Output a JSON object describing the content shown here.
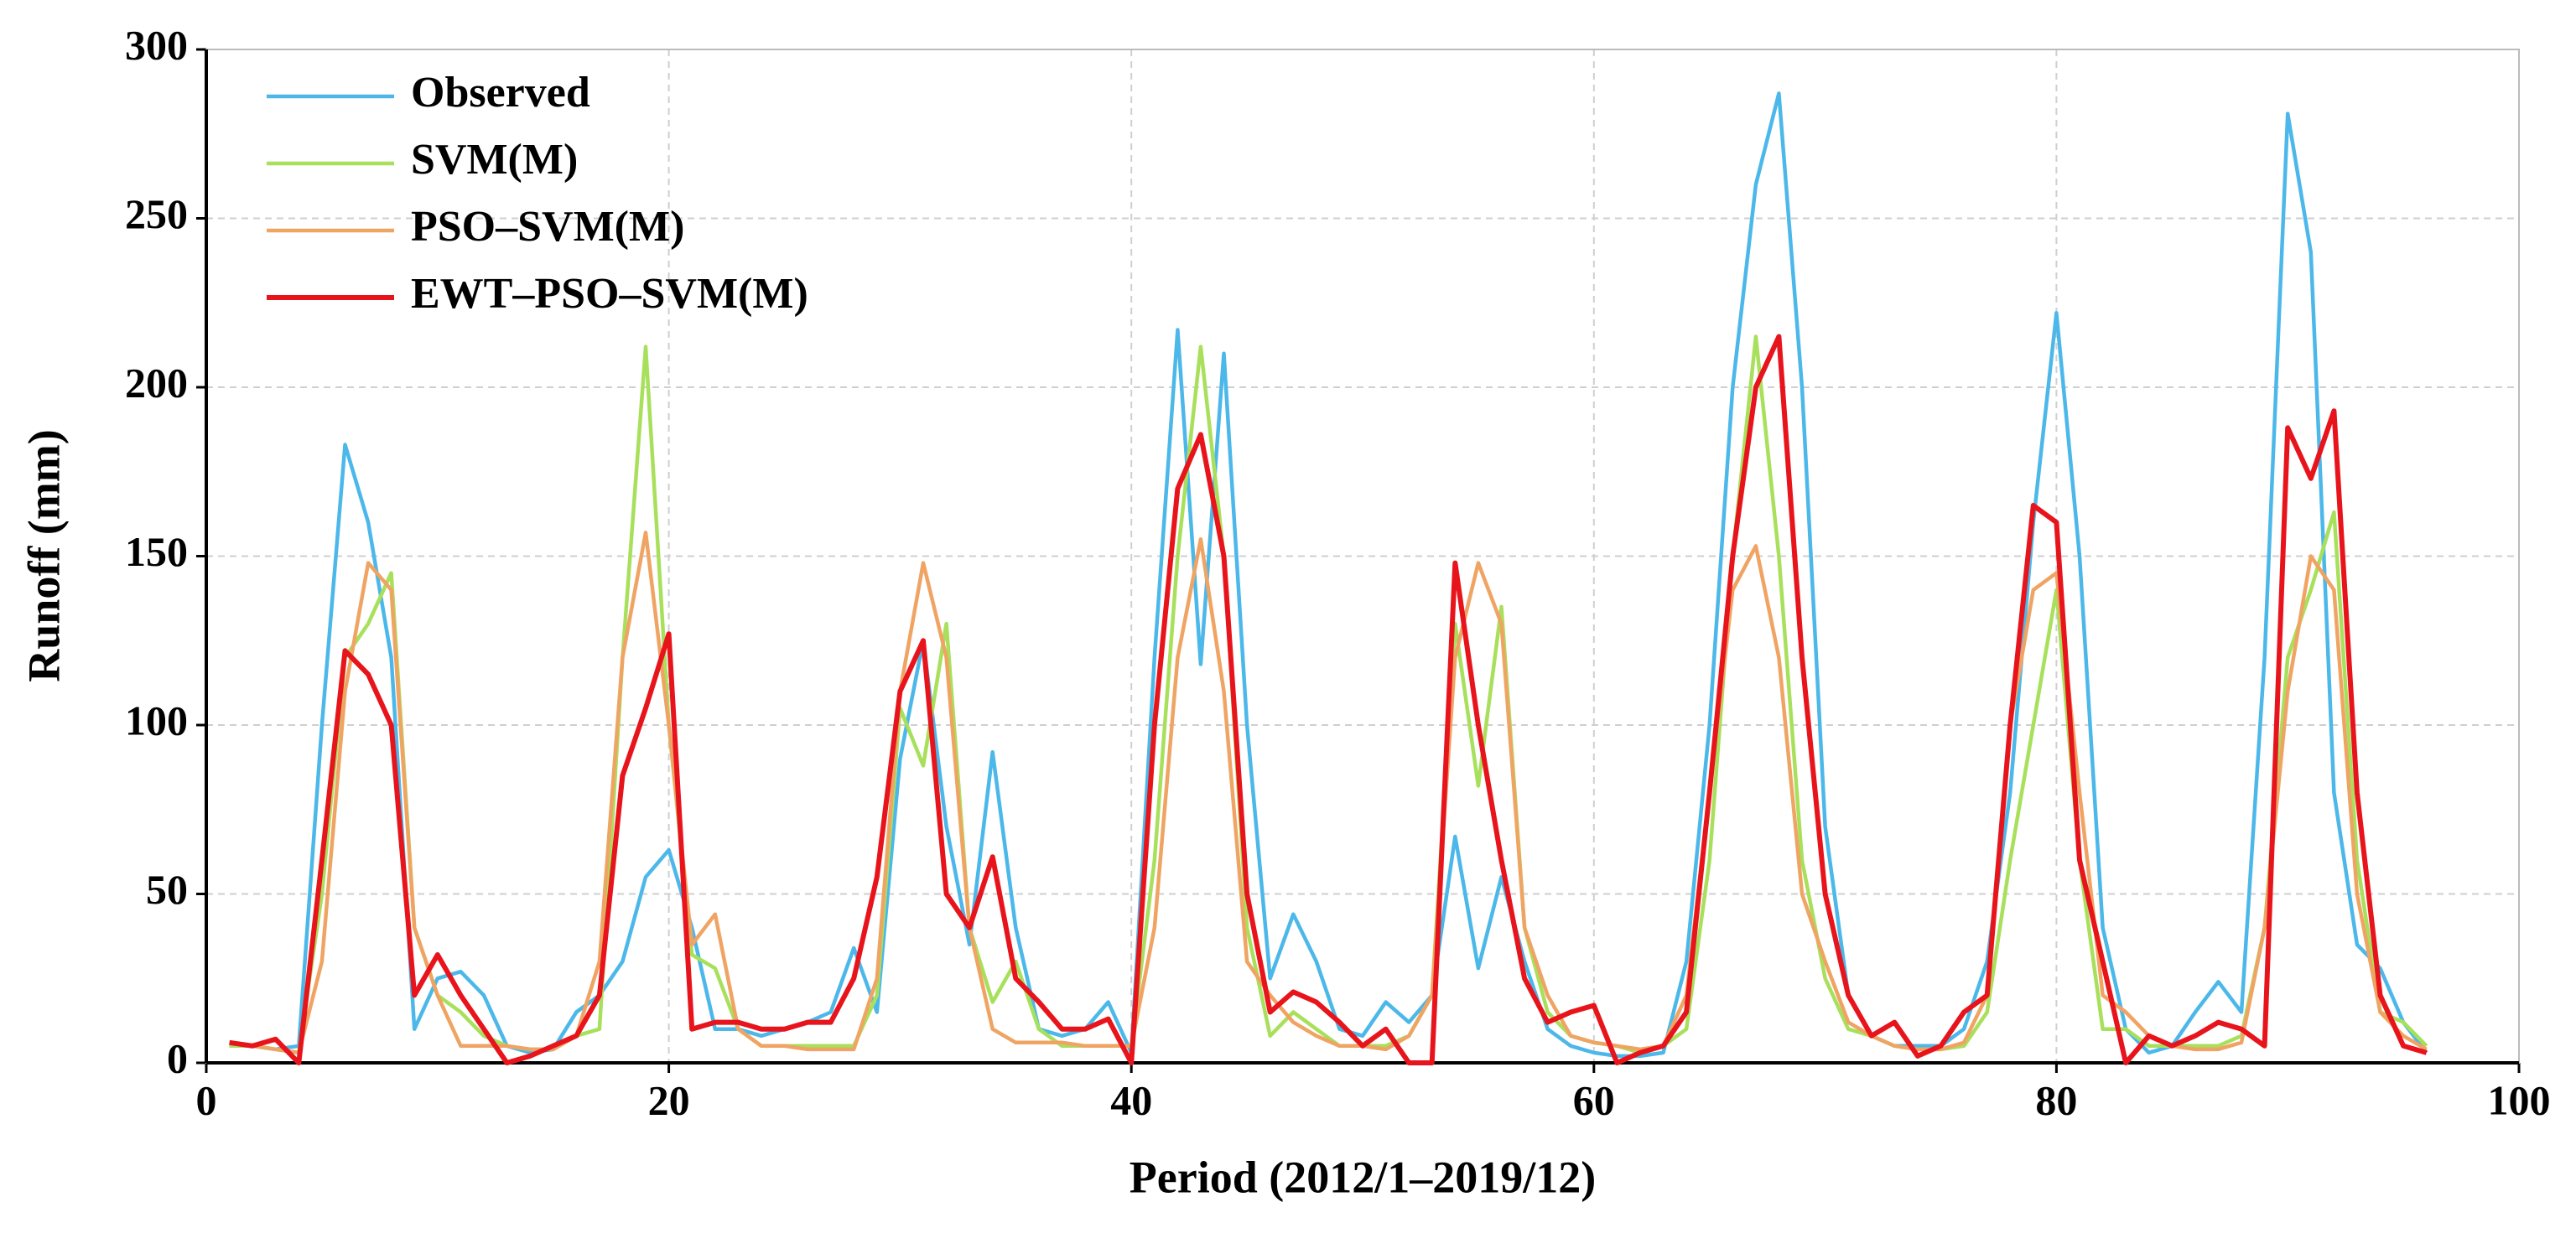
{
  "chart_data": {
    "type": "line",
    "x_label": "Period (2012/1–2019/12)",
    "y_label": "Runoff (mm)",
    "x": [
      1,
      2,
      3,
      4,
      5,
      6,
      7,
      8,
      9,
      10,
      11,
      12,
      13,
      14,
      15,
      16,
      17,
      18,
      19,
      20,
      21,
      22,
      23,
      24,
      25,
      26,
      27,
      28,
      29,
      30,
      31,
      32,
      33,
      34,
      35,
      36,
      37,
      38,
      39,
      40,
      41,
      42,
      43,
      44,
      45,
      46,
      47,
      48,
      49,
      50,
      51,
      52,
      53,
      54,
      55,
      56,
      57,
      58,
      59,
      60,
      61,
      62,
      63,
      64,
      65,
      66,
      67,
      68,
      69,
      70,
      71,
      72,
      73,
      74,
      75,
      76,
      77,
      78,
      79,
      80,
      81,
      82,
      83,
      84,
      85,
      86,
      87,
      88,
      89,
      90,
      91,
      92,
      93,
      94,
      95,
      96
    ],
    "series": [
      {
        "name": "Observed",
        "color": "#4cb8ea",
        "values": [
          5,
          5,
          4,
          5,
          100,
          183,
          160,
          120,
          10,
          25,
          27,
          20,
          5,
          3,
          4,
          15,
          20,
          30,
          55,
          63,
          40,
          10,
          10,
          8,
          10,
          12,
          15,
          34,
          15,
          90,
          125,
          70,
          35,
          92,
          40,
          10,
          8,
          10,
          18,
          3,
          120,
          217,
          118,
          210,
          100,
          25,
          44,
          30,
          10,
          8,
          18,
          12,
          20,
          67,
          28,
          55,
          30,
          10,
          5,
          3,
          2,
          2,
          3,
          30,
          100,
          200,
          260,
          287,
          200,
          70,
          20,
          8,
          5,
          5,
          5,
          10,
          30,
          80,
          160,
          222,
          150,
          40,
          10,
          3,
          5,
          15,
          24,
          15,
          120,
          281,
          240,
          80,
          35,
          28,
          12,
          3
        ]
      },
      {
        "name": "SVM(M)",
        "color": "#a8e05c",
        "values": [
          5,
          5,
          4,
          3,
          50,
          120,
          130,
          145,
          40,
          20,
          15,
          8,
          5,
          4,
          4,
          8,
          10,
          120,
          212,
          100,
          32,
          28,
          10,
          5,
          5,
          5,
          5,
          5,
          20,
          105,
          88,
          130,
          40,
          18,
          30,
          10,
          5,
          5,
          5,
          5,
          60,
          150,
          212,
          150,
          40,
          8,
          15,
          10,
          5,
          5,
          5,
          8,
          20,
          130,
          82,
          135,
          40,
          15,
          8,
          6,
          5,
          3,
          5,
          10,
          60,
          150,
          215,
          150,
          60,
          25,
          10,
          8,
          5,
          4,
          4,
          5,
          15,
          60,
          100,
          140,
          60,
          10,
          10,
          5,
          5,
          5,
          5,
          8,
          40,
          120,
          140,
          163,
          60,
          15,
          12,
          5
        ]
      },
      {
        "name": "PSO–SVM(M)",
        "color": "#f0a464",
        "values": [
          6,
          5,
          4,
          3,
          30,
          110,
          148,
          140,
          40,
          20,
          5,
          5,
          5,
          4,
          4,
          8,
          30,
          120,
          157,
          100,
          35,
          44,
          10,
          5,
          5,
          4,
          4,
          4,
          25,
          110,
          148,
          120,
          40,
          10,
          6,
          6,
          6,
          5,
          5,
          5,
          40,
          120,
          155,
          110,
          30,
          20,
          12,
          8,
          5,
          5,
          4,
          8,
          20,
          120,
          148,
          130,
          40,
          20,
          8,
          6,
          5,
          4,
          5,
          20,
          80,
          140,
          153,
          120,
          50,
          30,
          12,
          8,
          5,
          4,
          4,
          6,
          20,
          100,
          140,
          145,
          80,
          20,
          15,
          8,
          5,
          4,
          4,
          6,
          40,
          110,
          150,
          140,
          50,
          15,
          8,
          4
        ]
      },
      {
        "name": "EWT–PSO–SVM(M)",
        "color": "#e8141c",
        "values": [
          6,
          5,
          7,
          0,
          60,
          122,
          115,
          100,
          20,
          32,
          20,
          10,
          0,
          2,
          5,
          8,
          20,
          85,
          105,
          127,
          10,
          12,
          12,
          10,
          10,
          12,
          12,
          25,
          55,
          110,
          125,
          50,
          40,
          61,
          25,
          18,
          10,
          10,
          13,
          0,
          100,
          170,
          186,
          150,
          50,
          15,
          21,
          18,
          12,
          5,
          10,
          0,
          0,
          148,
          100,
          60,
          25,
          12,
          15,
          17,
          0,
          3,
          5,
          15,
          80,
          150,
          200,
          215,
          120,
          50,
          20,
          8,
          12,
          2,
          5,
          15,
          20,
          100,
          165,
          160,
          60,
          30,
          0,
          8,
          5,
          8,
          12,
          10,
          5,
          188,
          173,
          193,
          80,
          20,
          5,
          3
        ]
      }
    ],
    "xlim": [
      0,
      100
    ],
    "xticks": [
      0,
      20,
      40,
      60,
      80,
      100
    ],
    "ylim": [
      0,
      300
    ],
    "yticks": [
      0,
      50,
      100,
      150,
      200,
      250,
      300
    ],
    "grid": true,
    "legend": "upper left"
  }
}
